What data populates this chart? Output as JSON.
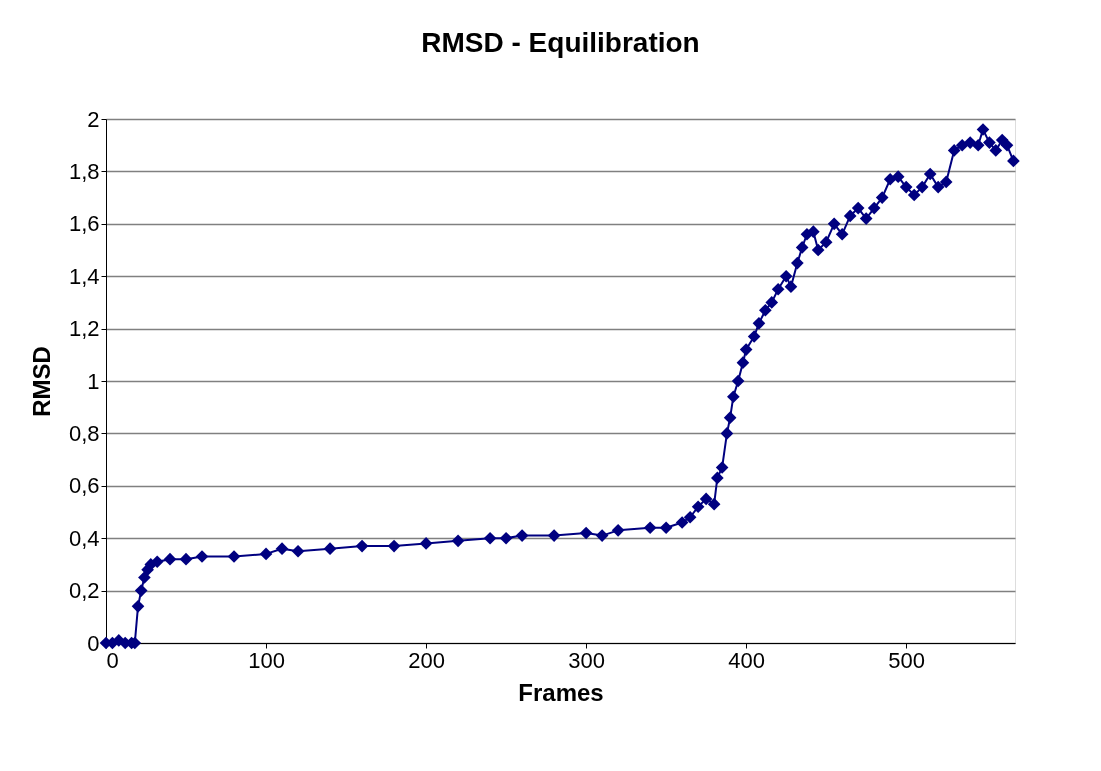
{
  "chart_data": {
    "type": "line",
    "title": "RMSD - Equilibration",
    "xlabel": "Frames",
    "ylabel": "RMSD",
    "x": [
      0,
      4,
      8,
      12,
      16,
      18,
      20,
      22,
      24,
      26,
      28,
      32,
      40,
      50,
      60,
      80,
      100,
      110,
      120,
      140,
      160,
      180,
      200,
      220,
      240,
      250,
      260,
      280,
      300,
      310,
      320,
      340,
      350,
      360,
      365,
      370,
      375,
      380,
      382,
      385,
      388,
      390,
      392,
      395,
      398,
      400,
      405,
      408,
      412,
      416,
      420,
      425,
      428,
      432,
      435,
      438,
      442,
      445,
      450,
      455,
      460,
      465,
      470,
      475,
      480,
      485,
      490,
      495,
      500,
      505,
      510,
      515,
      520,
      525,
      530,
      535,
      540,
      545,
      548,
      552,
      556,
      560,
      563,
      567
    ],
    "series": [
      {
        "color": "#000080",
        "values": [
          0,
          0,
          0.01,
          0,
          0,
          0,
          0.14,
          0.2,
          0.25,
          0.28,
          0.3,
          0.31,
          0.32,
          0.32,
          0.33,
          0.33,
          0.34,
          0.36,
          0.35,
          0.36,
          0.37,
          0.37,
          0.38,
          0.39,
          0.4,
          0.4,
          0.41,
          0.41,
          0.42,
          0.41,
          0.43,
          0.44,
          0.44,
          0.46,
          0.48,
          0.52,
          0.55,
          0.53,
          0.63,
          0.67,
          0.8,
          0.86,
          0.94,
          1.0,
          1.07,
          1.12,
          1.17,
          1.22,
          1.27,
          1.3,
          1.35,
          1.4,
          1.36,
          1.45,
          1.51,
          1.56,
          1.57,
          1.5,
          1.53,
          1.6,
          1.56,
          1.63,
          1.66,
          1.62,
          1.66,
          1.7,
          1.77,
          1.78,
          1.74,
          1.71,
          1.74,
          1.79,
          1.74,
          1.76,
          1.88,
          1.9,
          1.91,
          1.9,
          1.96,
          1.91,
          1.88,
          1.92,
          1.9,
          1.84
        ]
      }
    ],
    "xlim": [
      0,
      568
    ],
    "xticks": [
      0,
      100,
      200,
      300,
      400,
      500
    ],
    "ylim": [
      0,
      2
    ],
    "yticks": [
      0,
      {
        "value": 0.2,
        "label": "0,2"
      },
      {
        "value": 0.4,
        "label": "0,4"
      },
      {
        "value": 0.6,
        "label": "0,6"
      },
      {
        "value": 0.8,
        "label": "0,8"
      },
      1,
      {
        "value": 1.2,
        "label": "1,2"
      },
      {
        "value": 1.4,
        "label": "1,4"
      },
      {
        "value": 1.6,
        "label": "1,6"
      },
      {
        "value": 1.8,
        "label": "1,8"
      },
      2
    ],
    "grid": "y",
    "marker": "diamond",
    "line_style": "solid"
  }
}
